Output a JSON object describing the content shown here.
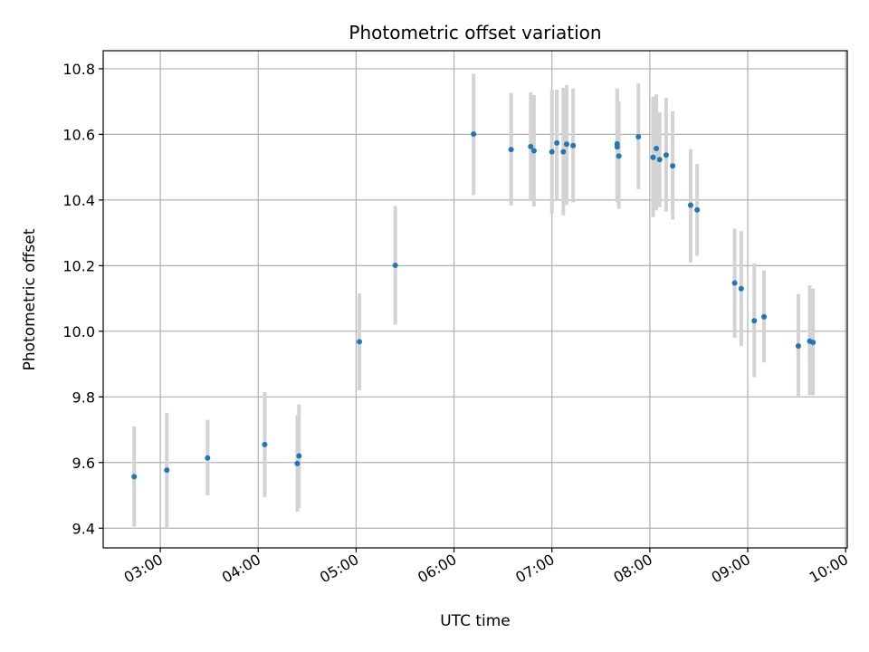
{
  "chart_data": {
    "type": "scatter",
    "title": "Photometric offset variation",
    "xlabel": "UTC time",
    "ylabel": "Photometric offset",
    "x_unit": "UTC time (HH:MM)",
    "xlim": [
      "02:25",
      "10:01"
    ],
    "ylim": [
      9.34,
      10.855
    ],
    "x_ticks": [
      "03:00",
      "04:00",
      "05:00",
      "06:00",
      "07:00",
      "08:00",
      "09:00",
      "10:00"
    ],
    "y_ticks": [
      "9.4",
      "9.6",
      "9.8",
      "10.0",
      "10.2",
      "10.4",
      "10.6",
      "10.8"
    ],
    "grid": true,
    "errorbar_color": "#d3d3d3",
    "marker_color": "#1f77b4",
    "points": [
      {
        "x": "02:44",
        "y": 9.557,
        "lo": 9.405,
        "hi": 9.71
      },
      {
        "x": "03:04",
        "y": 9.577,
        "lo": 9.4,
        "hi": 9.752
      },
      {
        "x": "03:29",
        "y": 9.614,
        "lo": 9.5,
        "hi": 9.73
      },
      {
        "x": "04:04",
        "y": 9.655,
        "lo": 9.495,
        "hi": 9.815
      },
      {
        "x": "04:24",
        "y": 9.597,
        "lo": 9.45,
        "hi": 9.745
      },
      {
        "x": "04:25",
        "y": 9.62,
        "lo": 9.46,
        "hi": 9.777
      },
      {
        "x": "05:02",
        "y": 9.968,
        "lo": 9.82,
        "hi": 10.115
      },
      {
        "x": "05:24",
        "y": 10.201,
        "lo": 10.02,
        "hi": 10.382
      },
      {
        "x": "06:12",
        "y": 10.601,
        "lo": 10.415,
        "hi": 10.785
      },
      {
        "x": "06:35",
        "y": 10.554,
        "lo": 10.383,
        "hi": 10.726
      },
      {
        "x": "06:47",
        "y": 10.563,
        "lo": 10.4,
        "hi": 10.728
      },
      {
        "x": "06:49",
        "y": 10.55,
        "lo": 10.38,
        "hi": 10.72
      },
      {
        "x": "07:00",
        "y": 10.547,
        "lo": 10.358,
        "hi": 10.735
      },
      {
        "x": "07:03",
        "y": 10.574,
        "lo": 10.4,
        "hi": 10.736
      },
      {
        "x": "07:07",
        "y": 10.547,
        "lo": 10.353,
        "hi": 10.742
      },
      {
        "x": "07:09",
        "y": 10.57,
        "lo": 10.385,
        "hi": 10.75
      },
      {
        "x": "07:13",
        "y": 10.566,
        "lo": 10.393,
        "hi": 10.74
      },
      {
        "x": "07:40",
        "y": 10.571,
        "lo": 10.405,
        "hi": 10.74
      },
      {
        "x": "07:40",
        "y": 10.562,
        "lo": 10.393,
        "hi": 10.73
      },
      {
        "x": "07:41",
        "y": 10.534,
        "lo": 10.373,
        "hi": 10.7
      },
      {
        "x": "07:53",
        "y": 10.593,
        "lo": 10.433,
        "hi": 10.755
      },
      {
        "x": "08:02",
        "y": 10.53,
        "lo": 10.348,
        "hi": 10.715
      },
      {
        "x": "08:04",
        "y": 10.557,
        "lo": 10.368,
        "hi": 10.722
      },
      {
        "x": "08:06",
        "y": 10.523,
        "lo": 10.378,
        "hi": 10.667
      },
      {
        "x": "08:10",
        "y": 10.537,
        "lo": 10.365,
        "hi": 10.712
      },
      {
        "x": "08:14",
        "y": 10.504,
        "lo": 10.34,
        "hi": 10.67
      },
      {
        "x": "08:25",
        "y": 10.384,
        "lo": 10.21,
        "hi": 10.555
      },
      {
        "x": "08:29",
        "y": 10.37,
        "lo": 10.23,
        "hi": 10.51
      },
      {
        "x": "08:52",
        "y": 10.147,
        "lo": 9.98,
        "hi": 10.313
      },
      {
        "x": "08:56",
        "y": 10.13,
        "lo": 9.955,
        "hi": 10.305
      },
      {
        "x": "09:04",
        "y": 10.032,
        "lo": 9.86,
        "hi": 10.206
      },
      {
        "x": "09:10",
        "y": 10.044,
        "lo": 9.905,
        "hi": 10.185
      },
      {
        "x": "09:31",
        "y": 9.955,
        "lo": 9.8,
        "hi": 10.113
      },
      {
        "x": "09:38",
        "y": 9.97,
        "lo": 9.805,
        "hi": 10.14
      },
      {
        "x": "09:40",
        "y": 9.966,
        "lo": 9.805,
        "hi": 10.13
      }
    ]
  }
}
